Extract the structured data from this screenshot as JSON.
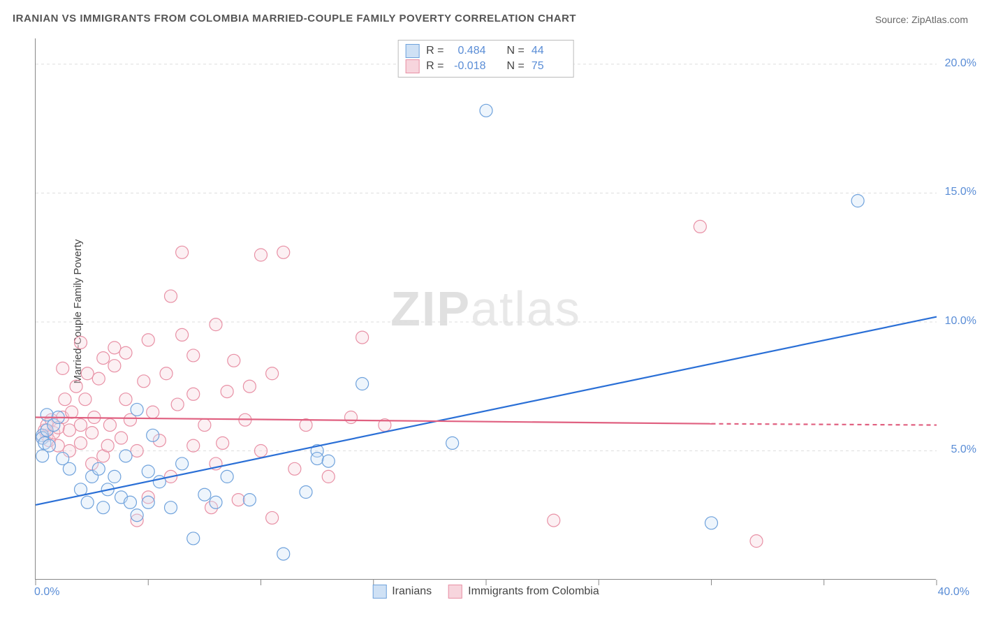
{
  "title": "IRANIAN VS IMMIGRANTS FROM COLOMBIA MARRIED-COUPLE FAMILY POVERTY CORRELATION CHART",
  "source_prefix": "Source: ",
  "source": "ZipAtlas.com",
  "y_axis_label": "Married-Couple Family Poverty",
  "watermark_a": "ZIP",
  "watermark_b": "atlas",
  "chart": {
    "type": "scatter",
    "xlim": [
      0,
      40
    ],
    "ylim": [
      0,
      21
    ],
    "x_ticks": [
      0,
      5,
      10,
      15,
      20,
      25,
      30,
      35,
      40
    ],
    "y_ticks": [
      5,
      10,
      15,
      20
    ],
    "x_tick_labels": {
      "0": "0.0%",
      "40": "40.0%"
    },
    "y_tick_labels": {
      "5": "5.0%",
      "10": "10.0%",
      "15": "15.0%",
      "20": "20.0%"
    },
    "grid_color": "#dddddd",
    "axis_color": "#888888",
    "background_color": "#ffffff",
    "y_label_color": "#5a8dd6",
    "marker_radius": 9,
    "marker_stroke_width": 1.2,
    "marker_fill_opacity": 0.35,
    "trend_line_width": 2.2
  },
  "stat_legend": {
    "r_label": "R =",
    "n_label": "N =",
    "rows": [
      {
        "swatch_fill": "#cfe1f5",
        "swatch_border": "#6fa2dc",
        "r": "0.484",
        "n": "44"
      },
      {
        "swatch_fill": "#f7d5dd",
        "swatch_border": "#e890a5",
        "r": "-0.018",
        "n": "75"
      }
    ]
  },
  "series_legend": [
    {
      "swatch_fill": "#cfe1f5",
      "swatch_border": "#6fa2dc",
      "label": "Iranians"
    },
    {
      "swatch_fill": "#f7d5dd",
      "swatch_border": "#e890a5",
      "label": "Immigrants from Colombia"
    }
  ],
  "series": {
    "iranians": {
      "color_stroke": "#6fa2dc",
      "color_fill": "#cfe1f5",
      "trend_color": "#2a6fd6",
      "trend": {
        "x1": 0,
        "y1": 2.9,
        "x2": 40,
        "y2": 10.2
      },
      "points": [
        [
          0.3,
          5.6
        ],
        [
          0.3,
          5.5
        ],
        [
          0.4,
          5.3
        ],
        [
          0.5,
          5.8
        ],
        [
          0.6,
          5.2
        ],
        [
          0.3,
          4.8
        ],
        [
          0.8,
          6.0
        ],
        [
          0.5,
          6.4
        ],
        [
          1.2,
          4.7
        ],
        [
          1.5,
          4.3
        ],
        [
          1.0,
          6.3
        ],
        [
          2.0,
          3.5
        ],
        [
          2.3,
          3.0
        ],
        [
          2.5,
          4.0
        ],
        [
          2.8,
          4.3
        ],
        [
          3.0,
          2.8
        ],
        [
          3.2,
          3.5
        ],
        [
          3.5,
          4.0
        ],
        [
          3.8,
          3.2
        ],
        [
          4.0,
          4.8
        ],
        [
          4.2,
          3.0
        ],
        [
          4.5,
          2.5
        ],
        [
          5.0,
          4.2
        ],
        [
          5.2,
          5.6
        ],
        [
          5.5,
          3.8
        ],
        [
          6.0,
          2.8
        ],
        [
          6.5,
          4.5
        ],
        [
          7.0,
          1.6
        ],
        [
          7.5,
          3.3
        ],
        [
          8.0,
          3.0
        ],
        [
          8.5,
          4.0
        ],
        [
          11.0,
          1.0
        ],
        [
          12.0,
          3.4
        ],
        [
          12.5,
          5.0
        ],
        [
          12.5,
          4.7
        ],
        [
          13.0,
          4.6
        ],
        [
          14.5,
          7.6
        ],
        [
          18.5,
          5.3
        ],
        [
          20.0,
          18.2
        ],
        [
          30.0,
          2.2
        ],
        [
          36.5,
          14.7
        ],
        [
          4.5,
          6.6
        ],
        [
          5.0,
          3.0
        ],
        [
          9.5,
          3.1
        ]
      ]
    },
    "colombia": {
      "color_stroke": "#e890a5",
      "color_fill": "#f7d5dd",
      "trend_color": "#e06080",
      "trend_solid": {
        "x1": 0,
        "y1": 6.3,
        "x2": 30,
        "y2": 6.05
      },
      "trend_dash": {
        "x1": 30,
        "y1": 6.05,
        "x2": 40,
        "y2": 6.0
      },
      "points": [
        [
          0.3,
          5.5
        ],
        [
          0.5,
          5.6
        ],
        [
          0.4,
          5.8
        ],
        [
          0.6,
          5.4
        ],
        [
          0.8,
          5.7
        ],
        [
          0.5,
          6.0
        ],
        [
          0.7,
          6.2
        ],
        [
          1.0,
          5.2
        ],
        [
          1.0,
          5.9
        ],
        [
          1.2,
          6.3
        ],
        [
          1.3,
          7.0
        ],
        [
          1.5,
          5.0
        ],
        [
          1.5,
          5.8
        ],
        [
          1.6,
          6.5
        ],
        [
          1.8,
          7.5
        ],
        [
          2.0,
          5.3
        ],
        [
          2.0,
          6.0
        ],
        [
          2.2,
          7.0
        ],
        [
          2.3,
          8.0
        ],
        [
          2.5,
          4.5
        ],
        [
          2.5,
          5.7
        ],
        [
          2.6,
          6.3
        ],
        [
          2.8,
          7.8
        ],
        [
          3.0,
          8.6
        ],
        [
          3.0,
          4.8
        ],
        [
          3.2,
          5.2
        ],
        [
          3.3,
          6.0
        ],
        [
          3.5,
          8.3
        ],
        [
          3.5,
          9.0
        ],
        [
          3.8,
          5.5
        ],
        [
          4.0,
          7.0
        ],
        [
          4.0,
          8.8
        ],
        [
          4.2,
          6.2
        ],
        [
          4.5,
          2.3
        ],
        [
          4.5,
          5.0
        ],
        [
          4.8,
          7.7
        ],
        [
          5.0,
          9.3
        ],
        [
          5.0,
          3.2
        ],
        [
          5.2,
          6.5
        ],
        [
          5.5,
          5.4
        ],
        [
          5.8,
          8.0
        ],
        [
          6.0,
          4.0
        ],
        [
          6.0,
          11.0
        ],
        [
          6.3,
          6.8
        ],
        [
          6.5,
          9.5
        ],
        [
          6.5,
          12.7
        ],
        [
          7.0,
          5.2
        ],
        [
          7.0,
          7.2
        ],
        [
          7.0,
          8.7
        ],
        [
          7.5,
          6.0
        ],
        [
          7.8,
          2.8
        ],
        [
          8.0,
          4.5
        ],
        [
          8.0,
          9.9
        ],
        [
          8.3,
          5.3
        ],
        [
          8.5,
          7.3
        ],
        [
          8.8,
          8.5
        ],
        [
          9.0,
          3.1
        ],
        [
          9.3,
          6.2
        ],
        [
          9.5,
          7.5
        ],
        [
          10.0,
          12.6
        ],
        [
          10.0,
          5.0
        ],
        [
          10.5,
          8.0
        ],
        [
          10.5,
          2.4
        ],
        [
          11.0,
          12.7
        ],
        [
          11.5,
          4.3
        ],
        [
          12.0,
          6.0
        ],
        [
          13.0,
          4.0
        ],
        [
          14.0,
          6.3
        ],
        [
          14.5,
          9.4
        ],
        [
          15.5,
          6.0
        ],
        [
          23.0,
          2.3
        ],
        [
          29.5,
          13.7
        ],
        [
          32.0,
          1.5
        ],
        [
          1.2,
          8.2
        ],
        [
          2.0,
          9.2
        ]
      ]
    }
  }
}
